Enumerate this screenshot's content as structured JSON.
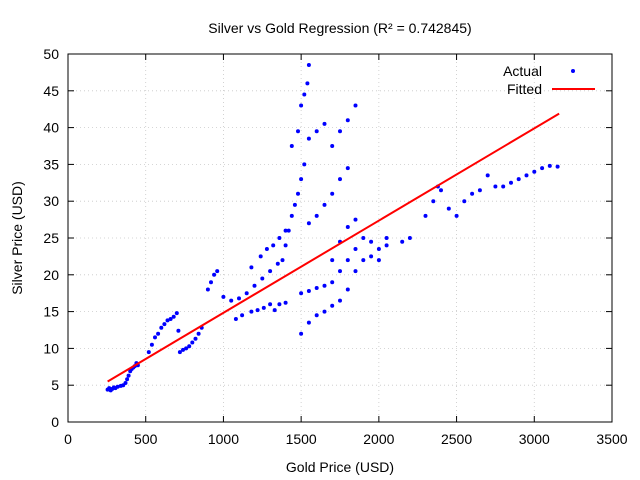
{
  "chart_data": {
    "type": "scatter",
    "title": "Silver vs Gold Regression (R² = 0.742845)",
    "xlabel": "Gold Price (USD)",
    "ylabel": "Silver Price (USD)",
    "xlim": [
      0,
      3500
    ],
    "ylim": [
      0,
      50
    ],
    "xticks": [
      0,
      500,
      1000,
      1500,
      2000,
      2500,
      3000,
      3500
    ],
    "yticks": [
      0,
      5,
      10,
      15,
      20,
      25,
      30,
      35,
      40,
      45,
      50
    ],
    "grid": true,
    "legend_position": "top-right",
    "series": [
      {
        "name": "Actual",
        "kind": "points",
        "color": "#0000ff",
        "points": [
          [
            255,
            4.4
          ],
          [
            265,
            4.6
          ],
          [
            275,
            4.3
          ],
          [
            285,
            4.5
          ],
          [
            295,
            4.7
          ],
          [
            305,
            4.6
          ],
          [
            320,
            4.8
          ],
          [
            340,
            4.9
          ],
          [
            355,
            5.0
          ],
          [
            370,
            5.3
          ],
          [
            380,
            5.8
          ],
          [
            390,
            6.3
          ],
          [
            400,
            6.9
          ],
          [
            410,
            7.2
          ],
          [
            420,
            7.4
          ],
          [
            430,
            7.6
          ],
          [
            440,
            8.0
          ],
          [
            450,
            7.7
          ],
          [
            520,
            9.5
          ],
          [
            540,
            10.5
          ],
          [
            560,
            11.5
          ],
          [
            580,
            12.0
          ],
          [
            600,
            12.8
          ],
          [
            620,
            13.3
          ],
          [
            640,
            13.8
          ],
          [
            660,
            14.0
          ],
          [
            680,
            14.3
          ],
          [
            700,
            14.8
          ],
          [
            710,
            12.4
          ],
          [
            720,
            9.5
          ],
          [
            740,
            9.8
          ],
          [
            760,
            10.0
          ],
          [
            780,
            10.3
          ],
          [
            800,
            10.8
          ],
          [
            820,
            11.3
          ],
          [
            840,
            12.0
          ],
          [
            860,
            12.8
          ],
          [
            900,
            18.0
          ],
          [
            920,
            19.0
          ],
          [
            940,
            20.0
          ],
          [
            960,
            20.5
          ],
          [
            1000,
            17.0
          ],
          [
            1050,
            16.5
          ],
          [
            1100,
            16.8
          ],
          [
            1150,
            17.5
          ],
          [
            1200,
            18.5
          ],
          [
            1250,
            19.5
          ],
          [
            1300,
            20.5
          ],
          [
            1350,
            21.5
          ],
          [
            1080,
            14.0
          ],
          [
            1120,
            14.5
          ],
          [
            1180,
            15.0
          ],
          [
            1220,
            15.2
          ],
          [
            1260,
            15.5
          ],
          [
            1300,
            16.0
          ],
          [
            1330,
            15.2
          ],
          [
            1360,
            16.0
          ],
          [
            1400,
            16.2
          ],
          [
            1180,
            21.0
          ],
          [
            1240,
            22.5
          ],
          [
            1280,
            23.5
          ],
          [
            1320,
            24.0
          ],
          [
            1360,
            25.0
          ],
          [
            1400,
            26.0
          ],
          [
            1380,
            22.0
          ],
          [
            1400,
            24.0
          ],
          [
            1420,
            26.0
          ],
          [
            1440,
            28.0
          ],
          [
            1460,
            29.5
          ],
          [
            1480,
            31.0
          ],
          [
            1500,
            33.0
          ],
          [
            1520,
            35.0
          ],
          [
            1440,
            37.5
          ],
          [
            1480,
            39.5
          ],
          [
            1500,
            43.0
          ],
          [
            1520,
            44.5
          ],
          [
            1540,
            46.0
          ],
          [
            1550,
            48.5
          ],
          [
            1550,
            27.0
          ],
          [
            1600,
            28.0
          ],
          [
            1650,
            29.5
          ],
          [
            1700,
            31.0
          ],
          [
            1750,
            33.0
          ],
          [
            1800,
            34.5
          ],
          [
            1550,
            38.5
          ],
          [
            1600,
            39.5
          ],
          [
            1650,
            40.5
          ],
          [
            1700,
            37.5
          ],
          [
            1750,
            39.5
          ],
          [
            1800,
            41.0
          ],
          [
            1850,
            43.0
          ],
          [
            1500,
            17.5
          ],
          [
            1550,
            17.8
          ],
          [
            1600,
            18.2
          ],
          [
            1650,
            18.5
          ],
          [
            1700,
            19.0
          ],
          [
            1750,
            20.5
          ],
          [
            1800,
            22.0
          ],
          [
            1850,
            23.5
          ],
          [
            1500,
            12.0
          ],
          [
            1550,
            13.5
          ],
          [
            1600,
            14.5
          ],
          [
            1650,
            15.0
          ],
          [
            1700,
            15.8
          ],
          [
            1750,
            16.5
          ],
          [
            1700,
            22.0
          ],
          [
            1750,
            24.5
          ],
          [
            1800,
            26.5
          ],
          [
            1850,
            27.5
          ],
          [
            1900,
            25.0
          ],
          [
            1950,
            24.5
          ],
          [
            2000,
            23.5
          ],
          [
            2050,
            25.0
          ],
          [
            1800,
            18.0
          ],
          [
            1850,
            20.5
          ],
          [
            1900,
            22.0
          ],
          [
            1950,
            22.5
          ],
          [
            2000,
            22.0
          ],
          [
            2050,
            24.0
          ],
          [
            2150,
            24.5
          ],
          [
            2200,
            25.0
          ],
          [
            2300,
            28.0
          ],
          [
            2350,
            30.0
          ],
          [
            2380,
            32.0
          ],
          [
            2400,
            31.5
          ],
          [
            2450,
            29.0
          ],
          [
            2500,
            28.0
          ],
          [
            2550,
            30.0
          ],
          [
            2600,
            31.0
          ],
          [
            2650,
            31.5
          ],
          [
            2700,
            33.5
          ],
          [
            2750,
            32.0
          ],
          [
            2800,
            32.0
          ],
          [
            2850,
            32.5
          ],
          [
            2900,
            33.0
          ],
          [
            2950,
            33.5
          ],
          [
            3000,
            34.0
          ],
          [
            3050,
            34.5
          ],
          [
            3100,
            34.8
          ],
          [
            3150,
            34.7
          ]
        ]
      },
      {
        "name": "Fitted",
        "kind": "line",
        "color": "#ff0000",
        "points": [
          [
            255,
            5.5
          ],
          [
            3160,
            41.9
          ]
        ]
      }
    ]
  }
}
